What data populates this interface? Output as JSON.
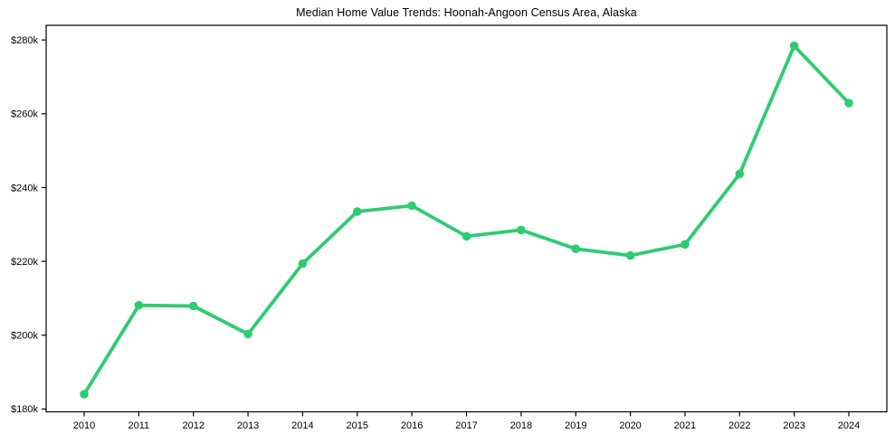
{
  "title": "Median Home Value Trends: Hoonah-Angoon Census Area, Alaska",
  "colors": {
    "line": "#2ecc71",
    "axis": "#000000",
    "text": "#000000",
    "background": "#ffffff"
  },
  "chart_data": {
    "type": "line",
    "title": "Median Home Value Trends: Hoonah-Angoon Census Area, Alaska",
    "xlabel": "",
    "ylabel": "",
    "unit": "USD thousands",
    "x": [
      2010,
      2011,
      2012,
      2013,
      2014,
      2015,
      2016,
      2017,
      2018,
      2019,
      2020,
      2021,
      2022,
      2023,
      2024
    ],
    "series": [
      {
        "name": "Median Home Value",
        "values": [
          184.0,
          208.1,
          207.9,
          200.3,
          219.4,
          233.5,
          235.1,
          226.8,
          228.5,
          223.4,
          221.6,
          224.6,
          243.7,
          278.4,
          262.9
        ]
      }
    ],
    "yticks": [
      180,
      200,
      220,
      240,
      260,
      280
    ],
    "ytick_labels": [
      "$180k",
      "$200k",
      "$220k",
      "$240k",
      "$260k",
      "$280k"
    ],
    "xtick_labels": [
      "2010",
      "2011",
      "2012",
      "2013",
      "2014",
      "2015",
      "2016",
      "2017",
      "2018",
      "2019",
      "2020",
      "2021",
      "2022",
      "2023",
      "2024"
    ],
    "ylim": [
      179.3,
      284.0
    ],
    "grid": false,
    "legend": false,
    "marker": "circle"
  }
}
